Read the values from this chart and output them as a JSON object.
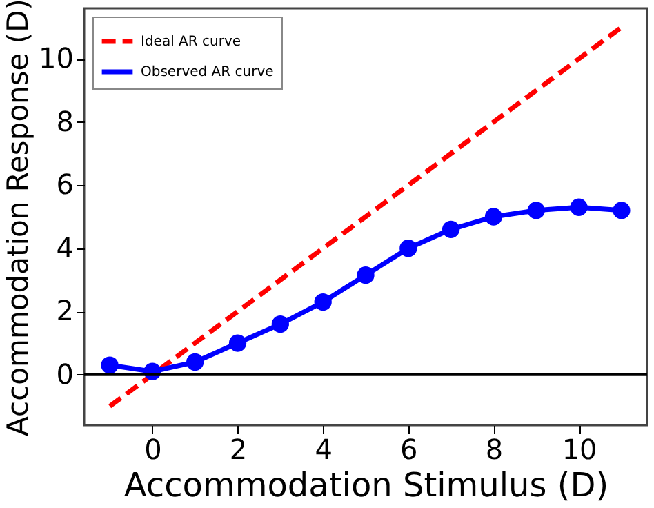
{
  "chart_data": {
    "type": "line",
    "xlabel": "Accommodation Stimulus (D)",
    "ylabel": "Accommodation Response (D)",
    "xlim": [
      -1.6,
      11.6
    ],
    "ylim": [
      -1.6,
      11.6
    ],
    "xticks": [
      0,
      2,
      4,
      6,
      8,
      10
    ],
    "yticks": [
      0,
      2,
      4,
      6,
      8,
      10
    ],
    "series": [
      {
        "name": "Ideal AR curve",
        "color": "#ff0000",
        "x": [
          -1,
          11
        ],
        "values": [
          -1,
          11
        ],
        "line_style": "dashed",
        "marker": "none"
      },
      {
        "name": "Observed AR curve",
        "color": "#0000ff",
        "x": [
          -1,
          0,
          1,
          2,
          3,
          4,
          5,
          6,
          7,
          8,
          9,
          10,
          11
        ],
        "values": [
          0.3,
          0.1,
          0.4,
          1.0,
          1.6,
          2.3,
          3.15,
          4.0,
          4.6,
          5.0,
          5.2,
          5.3,
          5.2
        ],
        "line_style": "solid",
        "marker": "circle"
      }
    ],
    "ref_lines": [
      {
        "axis": "y",
        "value": 0,
        "color": "#000000"
      }
    ],
    "legend": "top left",
    "grid": false
  }
}
